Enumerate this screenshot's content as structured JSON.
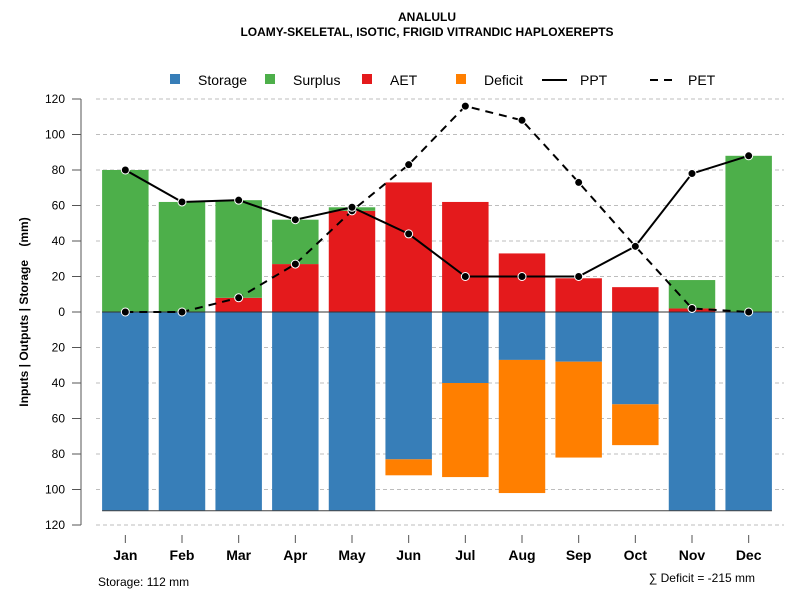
{
  "chart_data": {
    "type": "bar",
    "title": "ANALULU",
    "subtitle": "LOAMY-SKELETAL, ISOTIC, FRIGID VITRANDIC HAPLOXEREPTS",
    "xlabel": "",
    "ylabel": "Inputs | Outputs | Storage    (mm)",
    "ylim": [
      -120,
      120
    ],
    "yticks": [
      120,
      100,
      80,
      60,
      40,
      20,
      0,
      20,
      40,
      60,
      80,
      100,
      120
    ],
    "ytick_values": [
      120,
      100,
      80,
      60,
      40,
      20,
      0,
      -20,
      -40,
      -60,
      -80,
      -100,
      -120
    ],
    "grid": true,
    "legend_position": "top",
    "categories": [
      "Jan",
      "Feb",
      "Mar",
      "Apr",
      "May",
      "Jun",
      "Jul",
      "Aug",
      "Sep",
      "Oct",
      "Nov",
      "Dec"
    ],
    "legend": [
      {
        "name": "Storage",
        "kind": "box",
        "color": "#377EB8"
      },
      {
        "name": "Surplus",
        "kind": "box",
        "color": "#4DAF4A"
      },
      {
        "name": "AET",
        "kind": "box",
        "color": "#E41A1C"
      },
      {
        "name": "Deficit",
        "kind": "box",
        "color": "#FF7F00"
      },
      {
        "name": "PPT",
        "kind": "solid-line",
        "color": "#000000"
      },
      {
        "name": "PET",
        "kind": "dashed-line",
        "color": "#000000"
      }
    ],
    "series": [
      {
        "name": "AET",
        "values": [
          0,
          0,
          8,
          27,
          57,
          73,
          62,
          33,
          19,
          14,
          2,
          0
        ]
      },
      {
        "name": "Surplus",
        "values": [
          80,
          62,
          55,
          25,
          2,
          0,
          0,
          0,
          0,
          0,
          16,
          88
        ]
      },
      {
        "name": "Storage",
        "values": [
          112,
          112,
          112,
          112,
          112,
          83,
          40,
          27,
          28,
          52,
          112,
          112
        ]
      },
      {
        "name": "Deficit",
        "values": [
          0,
          0,
          0,
          0,
          0,
          9,
          53,
          75,
          54,
          23,
          0,
          0
        ]
      },
      {
        "name": "PPT",
        "values": [
          80,
          62,
          63,
          52,
          59,
          44,
          20,
          20,
          20,
          37,
          78,
          88
        ]
      },
      {
        "name": "PET",
        "values": [
          0,
          0,
          8,
          27,
          57,
          83,
          116,
          108,
          73,
          37,
          2,
          0
        ]
      }
    ],
    "annotations": {
      "storage_note": "Storage: 112 mm",
      "deficit_note": "∑ Deficit = -215 mm"
    }
  }
}
